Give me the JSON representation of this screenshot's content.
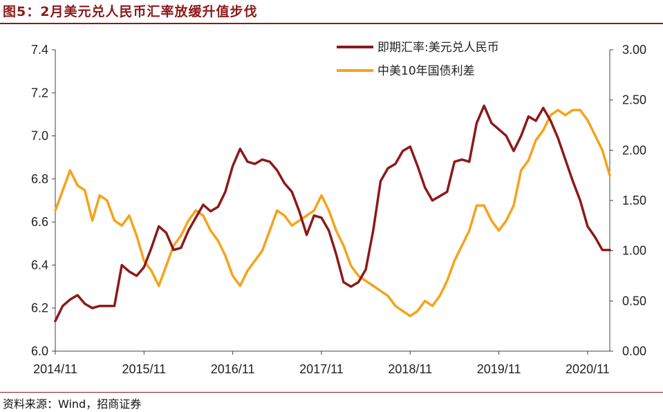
{
  "title": "图5：2月美元兑人民币汇率放缓升值步伐",
  "source": "资料来源：Wind，招商证券",
  "colors": {
    "fx": "#8b1a1a",
    "spread": "#f5a31a",
    "accent": "#8b1a1a"
  },
  "chart_data": {
    "type": "line",
    "title": "图5：2月美元兑人民币汇率放缓升值步伐",
    "x_ticks": [
      "2014/11",
      "2015/11",
      "2016/11",
      "2017/11",
      "2018/11",
      "2019/11",
      "2020/11"
    ],
    "x_range": [
      "2014-11",
      "2021-02"
    ],
    "y_left": {
      "ticks": [
        "6.0",
        "6.2",
        "6.4",
        "6.6",
        "6.8",
        "7.0",
        "7.2",
        "7.4"
      ],
      "ylim": [
        6.0,
        7.4
      ]
    },
    "y_right": {
      "ticks": [
        "0.00",
        "0.50",
        "1.00",
        "1.50",
        "2.00",
        "2.50",
        "3.00"
      ],
      "ylim": [
        0.0,
        3.0
      ]
    },
    "grid": false,
    "legend": "top-right",
    "series": [
      {
        "name": "即期汇率:美元兑人民币",
        "axis": "left",
        "points": [
          [
            "2014-11",
            6.14
          ],
          [
            "2014-12",
            6.21
          ],
          [
            "2015-01",
            6.24
          ],
          [
            "2015-02",
            6.26
          ],
          [
            "2015-03",
            6.22
          ],
          [
            "2015-04",
            6.2
          ],
          [
            "2015-05",
            6.21
          ],
          [
            "2015-06",
            6.21
          ],
          [
            "2015-07",
            6.21
          ],
          [
            "2015-08",
            6.4
          ],
          [
            "2015-09",
            6.37
          ],
          [
            "2015-10",
            6.35
          ],
          [
            "2015-11",
            6.39
          ],
          [
            "2015-12",
            6.48
          ],
          [
            "2016-01",
            6.58
          ],
          [
            "2016-02",
            6.55
          ],
          [
            "2016-03",
            6.47
          ],
          [
            "2016-04",
            6.48
          ],
          [
            "2016-05",
            6.56
          ],
          [
            "2016-06",
            6.62
          ],
          [
            "2016-07",
            6.68
          ],
          [
            "2016-08",
            6.65
          ],
          [
            "2016-09",
            6.67
          ],
          [
            "2016-10",
            6.74
          ],
          [
            "2016-11",
            6.86
          ],
          [
            "2016-12",
            6.94
          ],
          [
            "2017-01",
            6.88
          ],
          [
            "2017-02",
            6.87
          ],
          [
            "2017-03",
            6.89
          ],
          [
            "2017-04",
            6.88
          ],
          [
            "2017-05",
            6.84
          ],
          [
            "2017-06",
            6.78
          ],
          [
            "2017-07",
            6.74
          ],
          [
            "2017-08",
            6.65
          ],
          [
            "2017-09",
            6.54
          ],
          [
            "2017-10",
            6.63
          ],
          [
            "2017-11",
            6.62
          ],
          [
            "2017-12",
            6.56
          ],
          [
            "2018-01",
            6.45
          ],
          [
            "2018-02",
            6.32
          ],
          [
            "2018-03",
            6.3
          ],
          [
            "2018-04",
            6.32
          ],
          [
            "2018-05",
            6.38
          ],
          [
            "2018-06",
            6.56
          ],
          [
            "2018-07",
            6.79
          ],
          [
            "2018-08",
            6.85
          ],
          [
            "2018-09",
            6.87
          ],
          [
            "2018-10",
            6.93
          ],
          [
            "2018-11",
            6.95
          ],
          [
            "2018-12",
            6.86
          ],
          [
            "2019-01",
            6.76
          ],
          [
            "2019-02",
            6.7
          ],
          [
            "2019-03",
            6.72
          ],
          [
            "2019-04",
            6.74
          ],
          [
            "2019-05",
            6.88
          ],
          [
            "2019-06",
            6.89
          ],
          [
            "2019-07",
            6.88
          ],
          [
            "2019-08",
            7.06
          ],
          [
            "2019-09",
            7.14
          ],
          [
            "2019-10",
            7.06
          ],
          [
            "2019-11",
            7.03
          ],
          [
            "2019-12",
            7.0
          ],
          [
            "2020-01",
            6.93
          ],
          [
            "2020-02",
            7.0
          ],
          [
            "2020-03",
            7.09
          ],
          [
            "2020-04",
            7.07
          ],
          [
            "2020-05",
            7.13
          ],
          [
            "2020-06",
            7.07
          ],
          [
            "2020-07",
            6.99
          ],
          [
            "2020-08",
            6.89
          ],
          [
            "2020-09",
            6.79
          ],
          [
            "2020-10",
            6.7
          ],
          [
            "2020-11",
            6.58
          ],
          [
            "2020-12",
            6.53
          ],
          [
            "2021-01",
            6.47
          ],
          [
            "2021-02",
            6.47
          ]
        ]
      },
      {
        "name": "中美10年国债利差",
        "axis": "right",
        "points": [
          [
            "2014-11",
            1.4
          ],
          [
            "2014-12",
            1.6
          ],
          [
            "2015-01",
            1.8
          ],
          [
            "2015-02",
            1.65
          ],
          [
            "2015-03",
            1.6
          ],
          [
            "2015-04",
            1.3
          ],
          [
            "2015-05",
            1.55
          ],
          [
            "2015-06",
            1.5
          ],
          [
            "2015-07",
            1.3
          ],
          [
            "2015-08",
            1.25
          ],
          [
            "2015-09",
            1.35
          ],
          [
            "2015-10",
            1.15
          ],
          [
            "2015-11",
            0.9
          ],
          [
            "2015-12",
            0.8
          ],
          [
            "2016-01",
            0.65
          ],
          [
            "2016-02",
            0.85
          ],
          [
            "2016-03",
            1.05
          ],
          [
            "2016-04",
            1.15
          ],
          [
            "2016-05",
            1.3
          ],
          [
            "2016-06",
            1.4
          ],
          [
            "2016-07",
            1.35
          ],
          [
            "2016-08",
            1.2
          ],
          [
            "2016-09",
            1.1
          ],
          [
            "2016-10",
            0.95
          ],
          [
            "2016-11",
            0.75
          ],
          [
            "2016-12",
            0.65
          ],
          [
            "2017-01",
            0.8
          ],
          [
            "2017-02",
            0.9
          ],
          [
            "2017-03",
            1.0
          ],
          [
            "2017-04",
            1.2
          ],
          [
            "2017-05",
            1.4
          ],
          [
            "2017-06",
            1.35
          ],
          [
            "2017-07",
            1.25
          ],
          [
            "2017-08",
            1.3
          ],
          [
            "2017-09",
            1.35
          ],
          [
            "2017-10",
            1.4
          ],
          [
            "2017-11",
            1.55
          ],
          [
            "2017-12",
            1.4
          ],
          [
            "2018-01",
            1.2
          ],
          [
            "2018-02",
            1.05
          ],
          [
            "2018-03",
            0.85
          ],
          [
            "2018-04",
            0.75
          ],
          [
            "2018-05",
            0.7
          ],
          [
            "2018-06",
            0.65
          ],
          [
            "2018-07",
            0.6
          ],
          [
            "2018-08",
            0.55
          ],
          [
            "2018-09",
            0.45
          ],
          [
            "2018-10",
            0.4
          ],
          [
            "2018-11",
            0.35
          ],
          [
            "2018-12",
            0.4
          ],
          [
            "2019-01",
            0.5
          ],
          [
            "2019-02",
            0.45
          ],
          [
            "2019-03",
            0.55
          ],
          [
            "2019-04",
            0.7
          ],
          [
            "2019-05",
            0.9
          ],
          [
            "2019-06",
            1.05
          ],
          [
            "2019-07",
            1.2
          ],
          [
            "2019-08",
            1.45
          ],
          [
            "2019-09",
            1.45
          ],
          [
            "2019-10",
            1.3
          ],
          [
            "2019-11",
            1.2
          ],
          [
            "2019-12",
            1.3
          ],
          [
            "2020-01",
            1.45
          ],
          [
            "2020-02",
            1.8
          ],
          [
            "2020-03",
            1.9
          ],
          [
            "2020-04",
            2.1
          ],
          [
            "2020-05",
            2.2
          ],
          [
            "2020-06",
            2.35
          ],
          [
            "2020-07",
            2.4
          ],
          [
            "2020-08",
            2.35
          ],
          [
            "2020-09",
            2.4
          ],
          [
            "2020-10",
            2.4
          ],
          [
            "2020-11",
            2.3
          ],
          [
            "2020-12",
            2.15
          ],
          [
            "2021-01",
            2.0
          ],
          [
            "2021-02",
            1.75
          ]
        ]
      }
    ]
  }
}
